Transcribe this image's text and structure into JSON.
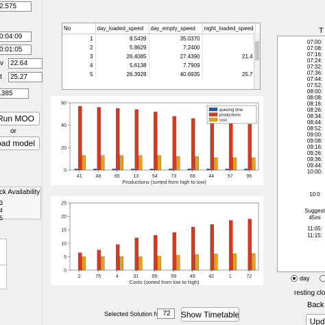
{
  "left": {
    "fields": [
      "2.575",
      "0:04:09",
      "0:01:05"
    ],
    "w_label": "v",
    "w_value": "22.64",
    "t_label": "t",
    "t_value": "25.27",
    "ratio_value": ".385",
    "run_button": "Run MOO",
    "or_label": "or",
    "load_button": "oad model",
    "availability_header": "ck Availability",
    "availability_items": [
      "3",
      "4",
      "5"
    ]
  },
  "table": {
    "columns": [
      "No",
      "day_loaded_speed",
      "day_empty_speed",
      "night_loaded_speed"
    ],
    "rows": [
      [
        "1",
        "8.5439",
        "35.0370",
        ""
      ],
      [
        "2",
        "5.8629",
        "7.2400",
        ""
      ],
      [
        "3",
        "26.4085",
        "27.4390",
        "21.4"
      ],
      [
        "4",
        "5.6138",
        "7.7909",
        ""
      ],
      [
        "5",
        "26.3928",
        "40.6935",
        "25.7"
      ]
    ]
  },
  "chart1": {
    "chart_data": {
      "type": "bar",
      "categories": [
        "41",
        "48",
        "65",
        "13",
        "54",
        "73",
        "69",
        "44",
        "57",
        "96"
      ],
      "series": [
        {
          "name": "queuing time",
          "values": [
            1,
            1,
            1,
            1,
            1,
            1,
            1,
            1,
            1,
            1
          ],
          "color": "#1f5fb4"
        },
        {
          "name": "productions",
          "values": [
            57,
            56,
            55,
            54,
            52,
            48,
            46,
            44,
            42,
            41
          ],
          "color": "#d9381e"
        },
        {
          "name": "cost",
          "values": [
            13,
            13,
            13,
            13,
            13,
            12,
            12,
            11,
            11,
            11
          ],
          "color": "#e8a21a"
        }
      ],
      "xlabel": "Productions (sorted from high to low)",
      "ylim": [
        0,
        60
      ],
      "yticks": [
        "0",
        "20",
        "40",
        "60"
      ],
      "legend": "top-right"
    }
  },
  "chart2": {
    "chart_data": {
      "type": "bar",
      "categories": [
        "2",
        "75",
        "4",
        "31",
        "85",
        "59",
        "49",
        "42",
        "1",
        "72"
      ],
      "series": [
        {
          "name": "queuing time",
          "values": [
            0,
            0,
            0,
            0,
            0,
            0,
            0,
            0,
            0,
            0
          ],
          "color": "#1f5fb4"
        },
        {
          "name": "productions",
          "values": [
            6.5,
            7.5,
            9.5,
            12,
            13,
            14,
            16,
            17,
            18.5,
            19
          ],
          "color": "#d9381e"
        },
        {
          "name": "cost",
          "values": [
            5,
            5,
            5,
            5,
            5.2,
            5.5,
            5.8,
            6,
            6.1,
            6.2
          ],
          "color": "#e8a21a"
        }
      ],
      "xlabel": "Costs (sorted from low to high)",
      "ylim": [
        0,
        25
      ],
      "yticks": [
        "0",
        "5",
        "10",
        "15",
        "20",
        "25"
      ]
    }
  },
  "bottom": {
    "selected_label": "Selected Solution No.",
    "selected_value": "72",
    "show_button": "Show Timetable"
  },
  "right": {
    "header": "T",
    "times": [
      "07:00:",
      "07:08:",
      "07:16:",
      "07:24:",
      "07:32:",
      "07:36:",
      "07:44:",
      "07:52:",
      "08:00:",
      "08:08:",
      "08:16:",
      "08:26:",
      "08:34:",
      "08:44:",
      "08:52:",
      "09:00:",
      "09:08:",
      "09:16:",
      "09:26:",
      "09:36:",
      "09:44:",
      "10:00:"
    ],
    "extra_1": "10:0",
    "suggest_1": "Suggest",
    "suggest_2": "45mi",
    "extra_2": "11:05:",
    "extra_3": "11:15:",
    "radio_day": "day",
    "resting_label": "resting clo",
    "back_button": "Back t",
    "update_button": "Upda"
  }
}
